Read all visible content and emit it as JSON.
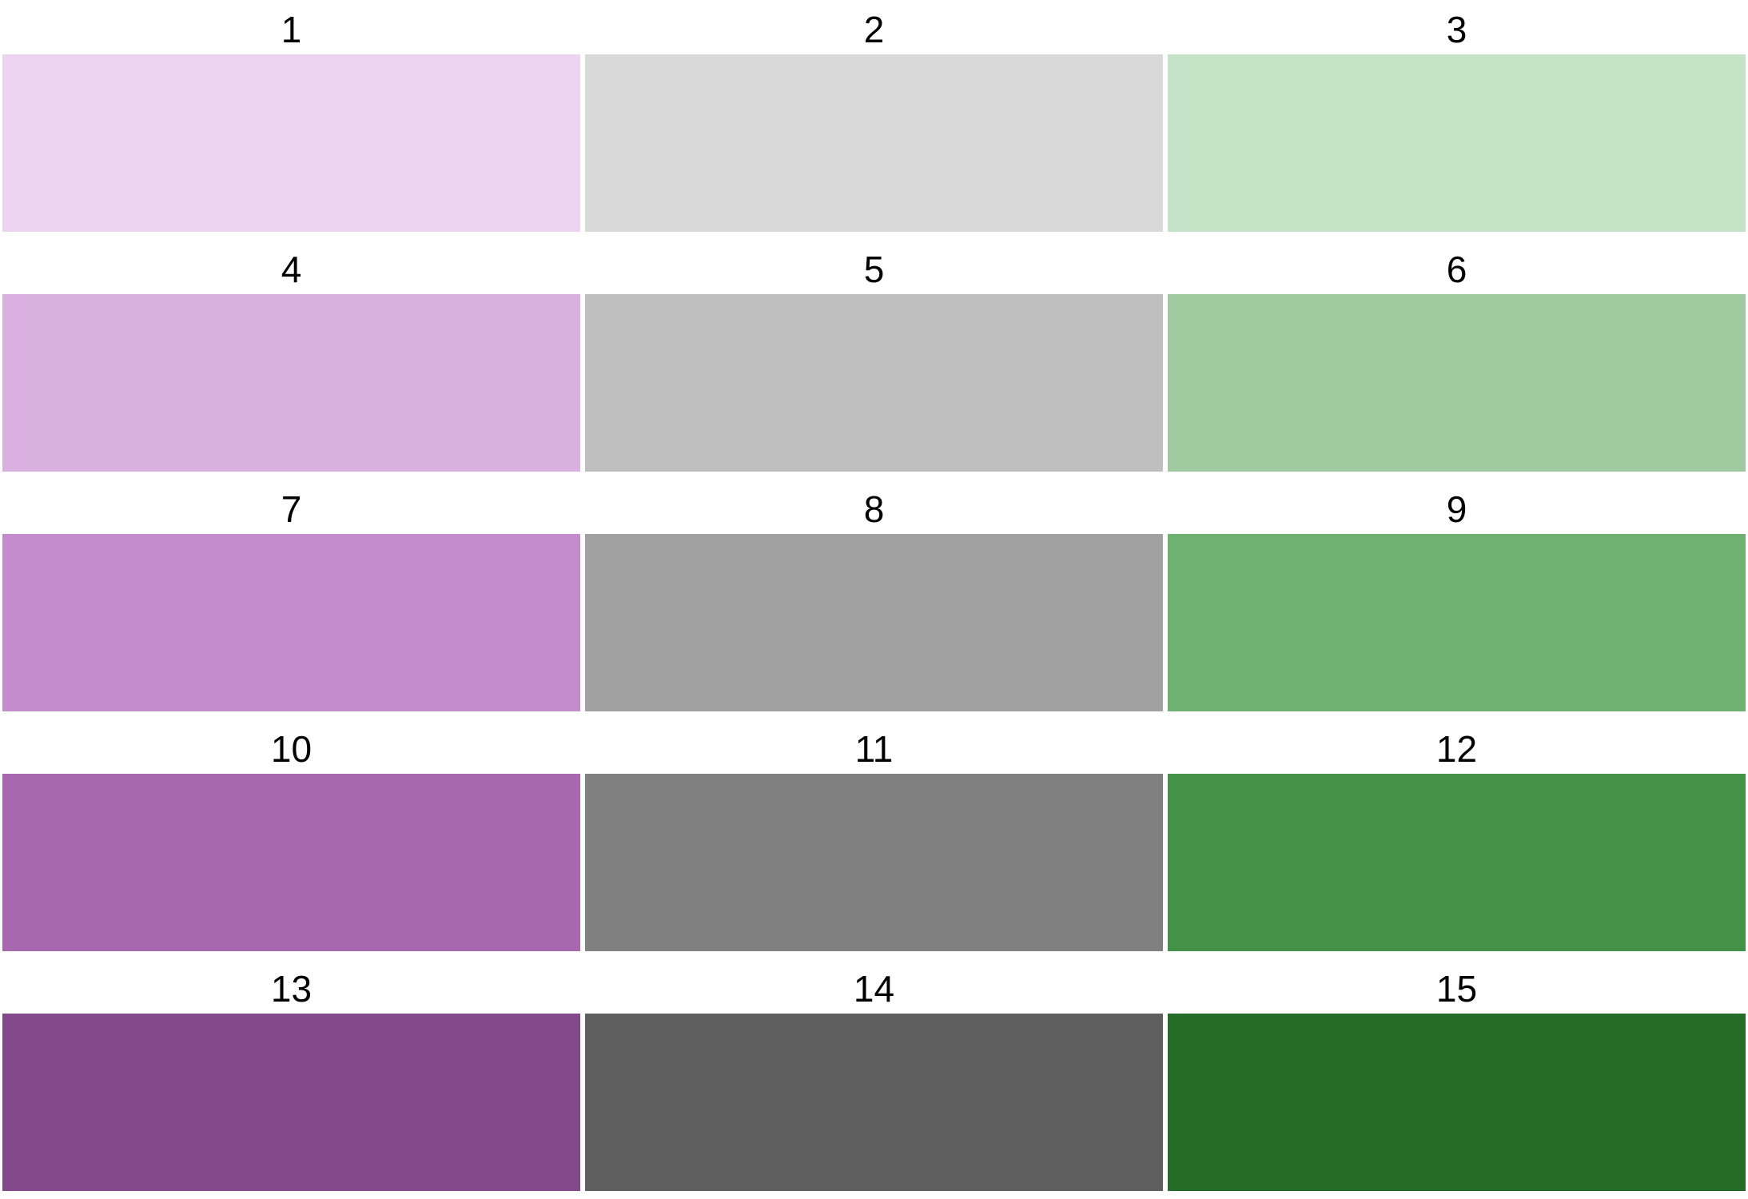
{
  "swatches": [
    {
      "label": "1",
      "color": "#ECD3F0"
    },
    {
      "label": "2",
      "color": "#D9D9D9"
    },
    {
      "label": "3",
      "color": "#C5E4C7"
    },
    {
      "label": "4",
      "color": "#D9B0DF"
    },
    {
      "label": "5",
      "color": "#BFBFBF"
    },
    {
      "label": "6",
      "color": "#A0CBA0"
    },
    {
      "label": "7",
      "color": "#C48CCC"
    },
    {
      "label": "8",
      "color": "#A1A1A1"
    },
    {
      "label": "9",
      "color": "#6FB170"
    },
    {
      "label": "10",
      "color": "#A868B0"
    },
    {
      "label": "11",
      "color": "#808080"
    },
    {
      "label": "12",
      "color": "#439247"
    },
    {
      "label": "13",
      "color": "#83498B"
    },
    {
      "label": "14",
      "color": "#5F5F5F"
    },
    {
      "label": "15",
      "color": "#266C29"
    }
  ]
}
